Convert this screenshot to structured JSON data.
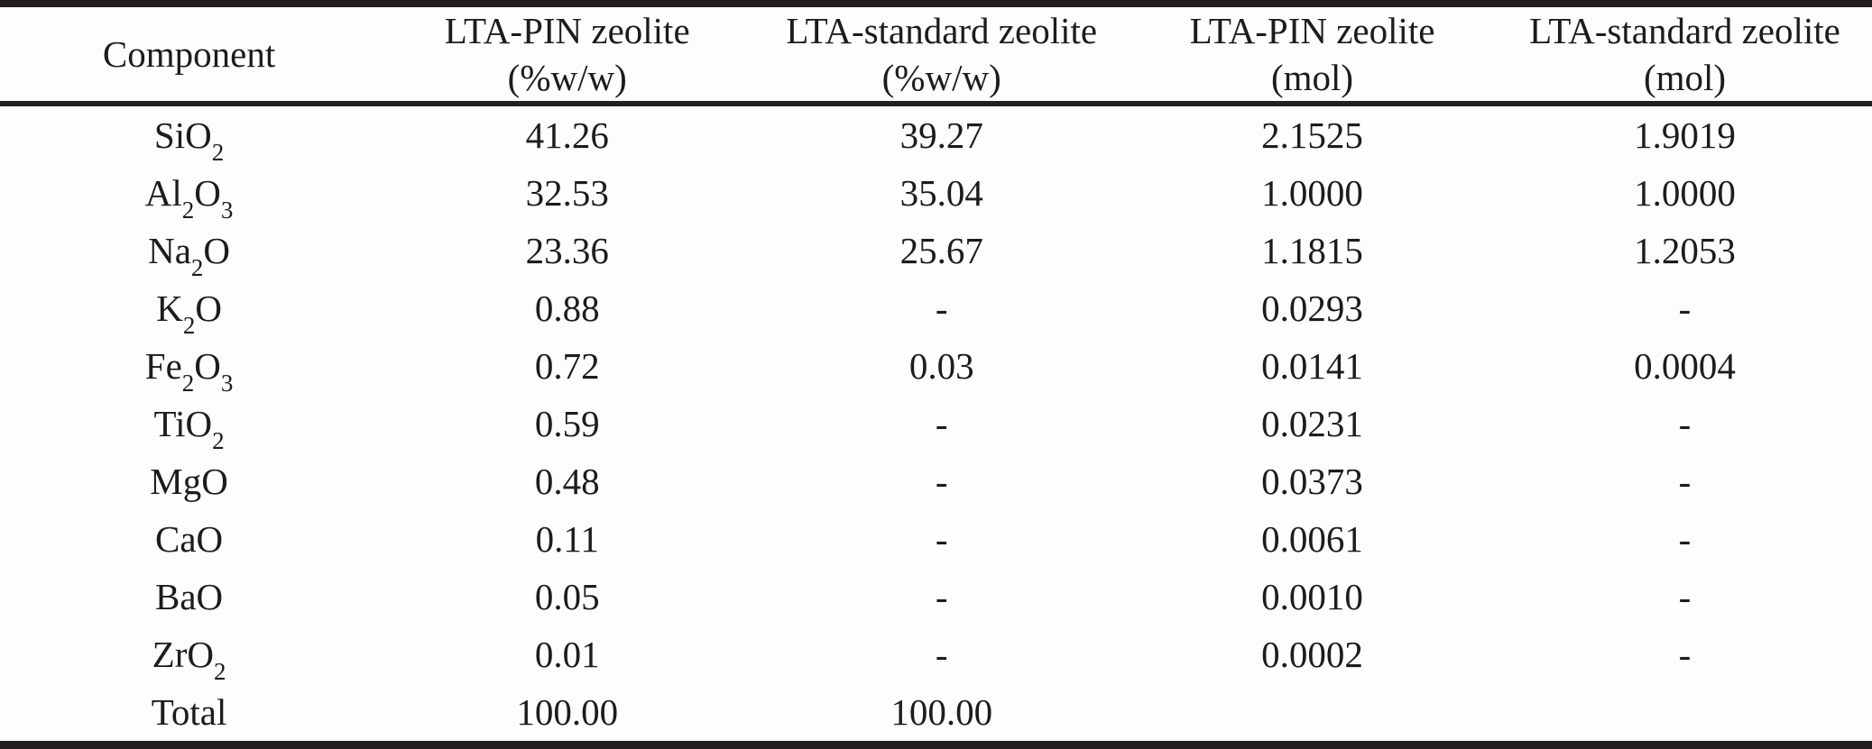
{
  "table": {
    "columns": [
      {
        "line1": "Component",
        "line2": ""
      },
      {
        "line1": "LTA-PIN zeolite",
        "line2": "(%w/w)"
      },
      {
        "line1": "LTA-standard zeolite",
        "line2": "(%w/w)"
      },
      {
        "line1": "LTA-PIN zeolite",
        "line2": "(mol)"
      },
      {
        "line1": "LTA-standard zeolite",
        "line2": "(mol)"
      }
    ],
    "rows": [
      {
        "component": "SiO~2~",
        "values": [
          "41.26",
          "39.27",
          "2.1525",
          "1.9019"
        ]
      },
      {
        "component": "Al~2~O~3~",
        "values": [
          "32.53",
          "35.04",
          "1.0000",
          "1.0000"
        ]
      },
      {
        "component": "Na~2~O",
        "values": [
          "23.36",
          "25.67",
          "1.1815",
          "1.2053"
        ]
      },
      {
        "component": "K~2~O",
        "values": [
          "0.88",
          "-",
          "0.0293",
          "-"
        ]
      },
      {
        "component": "Fe~2~O~3~",
        "values": [
          "0.72",
          "0.03",
          "0.0141",
          "0.0004"
        ]
      },
      {
        "component": "TiO~2~",
        "values": [
          "0.59",
          "-",
          "0.0231",
          "-"
        ]
      },
      {
        "component": "MgO",
        "values": [
          "0.48",
          "-",
          "0.0373",
          "-"
        ]
      },
      {
        "component": "CaO",
        "values": [
          "0.11",
          "-",
          "0.0061",
          "-"
        ]
      },
      {
        "component": "BaO",
        "values": [
          "0.05",
          "-",
          "0.0010",
          "-"
        ]
      },
      {
        "component": "ZrO~2~",
        "values": [
          "0.01",
          "-",
          "0.0002",
          "-"
        ]
      },
      {
        "component": "Total",
        "values": [
          "100.00",
          "100.00",
          "",
          ""
        ]
      }
    ]
  },
  "colors": {
    "rule": "#231f20",
    "text": "#1c1c1c",
    "background": "#fdfdfe"
  }
}
